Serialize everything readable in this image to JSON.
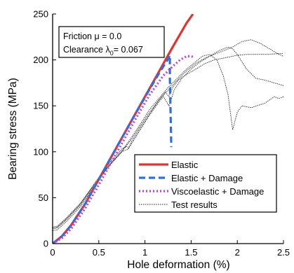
{
  "chart_data": {
    "type": "line",
    "xlabel": "Hole deformation (%)",
    "ylabel": "Bearing stress (MPa)",
    "xlim": [
      0,
      2.5
    ],
    "ylim": [
      0,
      250
    ],
    "xticks": [
      "0",
      "0.5",
      "1",
      "1.5",
      "2",
      "2.5"
    ],
    "yticks": [
      "0",
      "50",
      "100",
      "150",
      "200",
      "250"
    ],
    "grid": false,
    "legend_position": "bottom-right",
    "annotation": {
      "line1": "Friction μ = 0.0",
      "line2_prefix": "Clearance λ",
      "line2_sub": "0",
      "line2_suffix": "= 0.067"
    },
    "series": [
      {
        "name": "Elastic",
        "color": "#e8322c",
        "style": "solid",
        "x": [
          0.0,
          0.1,
          0.2,
          0.35,
          0.5,
          0.7,
          0.9,
          1.1,
          1.3,
          1.45,
          1.52
        ],
        "y": [
          0,
          8,
          20,
          43,
          70,
          106,
          142,
          178,
          214,
          240,
          250
        ]
      },
      {
        "name": "Elastic + Damage",
        "color": "#2d6fe0",
        "style": "dashed",
        "x": [
          0.0,
          0.1,
          0.2,
          0.35,
          0.5,
          0.7,
          0.9,
          1.05,
          1.15,
          1.25,
          1.27,
          1.27,
          1.285
        ],
        "y": [
          0,
          8,
          20,
          43,
          70,
          106,
          142,
          168,
          185,
          201,
          205,
          180,
          105
        ]
      },
      {
        "name": "Viscoelastic + Damage",
        "color": "#c13cf0",
        "style": "dotted",
        "x": [
          0.0,
          0.1,
          0.2,
          0.35,
          0.5,
          0.7,
          0.9,
          1.05,
          1.2,
          1.3,
          1.38,
          1.45,
          1.5,
          1.53
        ],
        "y": [
          0,
          6,
          16,
          38,
          64,
          100,
          136,
          162,
          183,
          193,
          200,
          204,
          204,
          203
        ]
      },
      {
        "name": "Test results",
        "color": "#222222",
        "style": "thin",
        "curves": [
          {
            "x": [
              0.0,
              0.05,
              0.15,
              0.3,
              0.45,
              0.6,
              0.75,
              0.8,
              0.82,
              0.85,
              0.95,
              1.05,
              1.15,
              1.22,
              1.26,
              1.3,
              1.36,
              1.45,
              1.55,
              1.65,
              1.75,
              1.9,
              2.0,
              2.1,
              2.3,
              2.5
            ],
            "y": [
              17,
              18,
              27,
              43,
              65,
              86,
              103,
              106,
              104,
              110,
              126,
              141,
              156,
              165,
              160,
              170,
              178,
              184,
              190,
              196,
              200,
              203,
              205,
              206,
              206,
              207
            ]
          },
          {
            "x": [
              0.0,
              0.05,
              0.15,
              0.3,
              0.45,
              0.6,
              0.75,
              0.82,
              0.85,
              0.95,
              1.05,
              1.15,
              1.2,
              1.26,
              1.32,
              1.4,
              1.5,
              1.6,
              1.7,
              1.8,
              1.9,
              1.95,
              2.0,
              2.1,
              2.2,
              2.3,
              2.4,
              2.5
            ],
            "y": [
              14,
              15,
              24,
              40,
              62,
              84,
              100,
              103,
              108,
              124,
              140,
              154,
              160,
              150,
              168,
              180,
              190,
              198,
              204,
              210,
              214,
              212,
              206,
              190,
              180,
              178,
              175,
              172
            ]
          },
          {
            "x": [
              0.0,
              0.05,
              0.15,
              0.3,
              0.45,
              0.6,
              0.75,
              0.85,
              0.95,
              1.05,
              1.15,
              1.25,
              1.35,
              1.45,
              1.55,
              1.62,
              1.7,
              1.78,
              1.85,
              1.9,
              1.95,
              2.0,
              2.05,
              2.15,
              2.3,
              2.4,
              2.45,
              2.5
            ],
            "y": [
              18,
              19,
              28,
              44,
              64,
              84,
              101,
              115,
              130,
              146,
              158,
              170,
              180,
              190,
              198,
              204,
              206,
              200,
              182,
              162,
              124,
              143,
              150,
              148,
              153,
              160,
              158,
              160
            ]
          },
          {
            "x": [
              0.0,
              0.05,
              0.15,
              0.3,
              0.45,
              0.6,
              0.75,
              0.85,
              0.95,
              1.05,
              1.15,
              1.25,
              1.35,
              1.45,
              1.55,
              1.65,
              1.75,
              1.85,
              1.95,
              2.05,
              2.15,
              2.25,
              2.35,
              2.45,
              2.5
            ],
            "y": [
              16,
              17,
              26,
              42,
              63,
              83,
              100,
              113,
              128,
              143,
              156,
              167,
              178,
              188,
              196,
              202,
              206,
              210,
              214,
              220,
              222,
              218,
              212,
              206,
              204
            ]
          }
        ]
      }
    ]
  }
}
